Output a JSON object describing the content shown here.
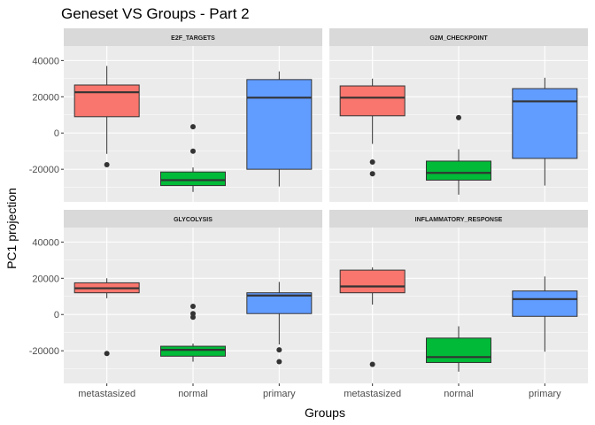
{
  "chart_data": {
    "type": "boxplot",
    "title": "Geneset VS Groups - Part 2",
    "xlabel": "Groups",
    "ylabel": "PC1 projection",
    "categories": [
      "metastasized",
      "normal",
      "primary"
    ],
    "category_colors": {
      "metastasized": "#F8766D",
      "normal": "#00BA38",
      "primary": "#619CFF"
    },
    "panel_background": "#EBEBEB",
    "strip_background": "#D9D9D9",
    "grid": true,
    "legend": "none",
    "ylim": [
      -38000,
      48000
    ],
    "yticks": [
      40000,
      20000,
      0,
      -20000
    ],
    "ytick_labels": [
      "40000",
      "20000",
      "0",
      "-20000"
    ],
    "panels": [
      {
        "strip": "E2F_TARGETS",
        "boxes": [
          {
            "group": "metastasized",
            "low": -11500,
            "q1": 9000,
            "median": 22500,
            "q3": 26500,
            "high": 37000,
            "outliers": [
              -17500
            ]
          },
          {
            "group": "normal",
            "low": -32500,
            "q1": -29000,
            "median": -26000,
            "q3": -21500,
            "high": -19000,
            "outliers": [
              3500,
              -10000
            ]
          },
          {
            "group": "primary",
            "low": -29500,
            "q1": -20000,
            "median": 19500,
            "q3": 29500,
            "high": 34000,
            "outliers": []
          }
        ]
      },
      {
        "strip": "G2M_CHECKPOINT",
        "boxes": [
          {
            "group": "metastasized",
            "low": -6000,
            "q1": 9500,
            "median": 19500,
            "q3": 26000,
            "high": 30000,
            "outliers": [
              -16000,
              -22500
            ]
          },
          {
            "group": "normal",
            "low": -34000,
            "q1": -26000,
            "median": -22000,
            "q3": -15500,
            "high": -9000,
            "outliers": [
              8500
            ]
          },
          {
            "group": "primary",
            "low": -29000,
            "q1": -14000,
            "median": 17500,
            "q3": 24500,
            "high": 30500,
            "outliers": []
          }
        ]
      },
      {
        "strip": "GLYCOLYSIS",
        "boxes": [
          {
            "group": "metastasized",
            "low": 9000,
            "q1": 12000,
            "median": 14500,
            "q3": 17500,
            "high": 20000,
            "outliers": [
              -21500
            ]
          },
          {
            "group": "normal",
            "low": -26000,
            "q1": -23000,
            "median": -19500,
            "q3": -17500,
            "high": -16000,
            "outliers": [
              4500,
              500,
              -1500
            ]
          },
          {
            "group": "primary",
            "low": -16500,
            "q1": 500,
            "median": 10500,
            "q3": 12000,
            "high": 18000,
            "outliers": [
              -19500,
              -26000
            ]
          }
        ]
      },
      {
        "strip": "INFLAMMATORY_RESPONSE",
        "boxes": [
          {
            "group": "metastasized",
            "low": 5500,
            "q1": 12000,
            "median": 15500,
            "q3": 24500,
            "high": 26000,
            "outliers": [
              -27500
            ]
          },
          {
            "group": "normal",
            "low": -31500,
            "q1": -26500,
            "median": -23500,
            "q3": -13000,
            "high": -6500,
            "outliers": []
          },
          {
            "group": "primary",
            "low": -20500,
            "q1": -1000,
            "median": 8500,
            "q3": 13000,
            "high": 21000,
            "outliers": []
          }
        ]
      }
    ]
  }
}
